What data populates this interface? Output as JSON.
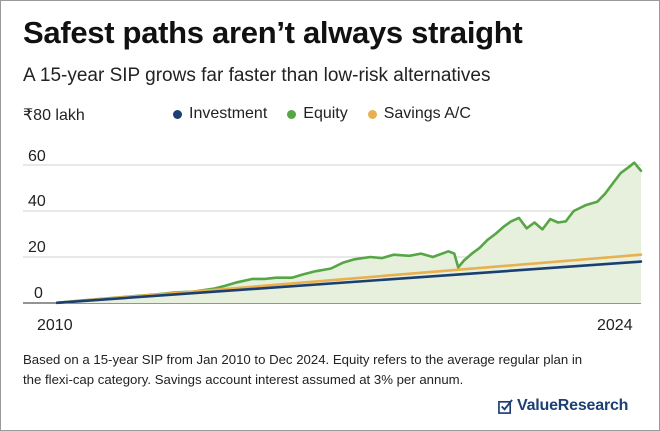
{
  "title": "Safest paths aren’t always straight",
  "subtitle": "A 15-year SIP grows far faster than low-risk alternatives",
  "unit_label": "₹80 lakh",
  "footnote_line1": "Based on a 15-year SIP from Jan 2010 to Dec 2024. Equity refers to the average regular plan in",
  "footnote_line2": "the flexi-cap category. Savings account interest assumed at 3% per annum.",
  "brand": "ValueResearch",
  "chart_data": {
    "type": "line",
    "x_start": "2010-01",
    "x_end": "2024-12",
    "y_ticks": [
      "0",
      "20",
      "40",
      "60"
    ],
    "ylim": [
      0,
      80
    ],
    "x_tick_labels": [
      "2010",
      "2024"
    ],
    "grid": true,
    "legend_position": "top",
    "series": [
      {
        "name": "Investment",
        "color": "#1b3f73",
        "x": [
          2010.0,
          2024.92
        ],
        "values": [
          0.1,
          18.0
        ]
      },
      {
        "name": "Equity",
        "color": "#57a645",
        "x": [
          2010.0,
          2010.5,
          2011.0,
          2011.5,
          2012.0,
          2012.5,
          2013.0,
          2013.5,
          2014.0,
          2014.3,
          2014.6,
          2015.0,
          2015.3,
          2015.6,
          2016.0,
          2016.3,
          2016.6,
          2017.0,
          2017.3,
          2017.6,
          2018.0,
          2018.3,
          2018.6,
          2019.0,
          2019.3,
          2019.6,
          2020.0,
          2020.15,
          2020.25,
          2020.4,
          2020.6,
          2020.8,
          2021.0,
          2021.2,
          2021.4,
          2021.6,
          2021.8,
          2022.0,
          2022.2,
          2022.4,
          2022.6,
          2022.8,
          2023.0,
          2023.2,
          2023.5,
          2023.8,
          2024.0,
          2024.2,
          2024.4,
          2024.6,
          2024.75,
          2024.92
        ],
        "values": [
          0.1,
          0.9,
          1.6,
          2.3,
          3.0,
          3.7,
          4.5,
          5.0,
          6.2,
          7.5,
          9.0,
          10.5,
          10.5,
          11.0,
          11.0,
          12.5,
          13.8,
          15.0,
          17.5,
          19.0,
          20.0,
          19.5,
          21.0,
          20.5,
          21.5,
          20.0,
          22.5,
          21.5,
          15.5,
          18.5,
          21.5,
          24.0,
          27.5,
          30.0,
          33.0,
          35.5,
          37.0,
          32.5,
          35.0,
          32.0,
          36.5,
          35.0,
          35.5,
          40.0,
          42.5,
          44.0,
          47.5,
          52.0,
          56.5,
          59.0,
          61.0,
          57.5
        ]
      },
      {
        "name": "Savings A/C",
        "color": "#e8b04e",
        "x": [
          2010.0,
          2024.92
        ],
        "values": [
          0.1,
          21.0
        ]
      }
    ]
  }
}
